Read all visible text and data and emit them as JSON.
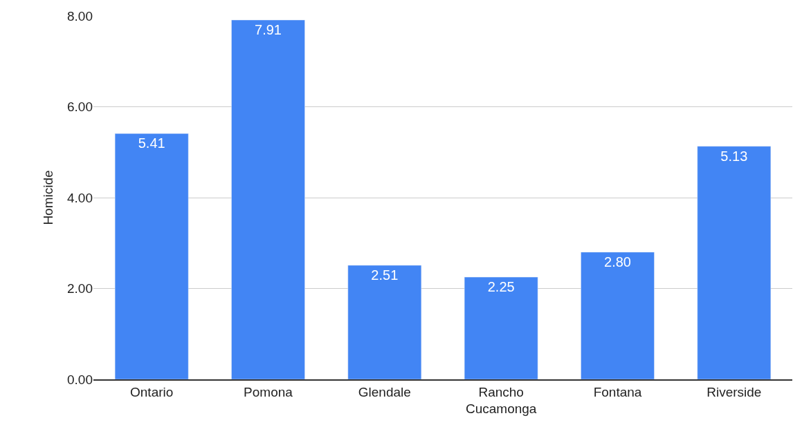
{
  "chart_data": {
    "type": "bar",
    "ylabel": "Homicide",
    "categories": [
      "Ontario",
      "Pomona",
      "Glendale",
      "Rancho Cucamonga",
      "Fontana",
      "Riverside"
    ],
    "values": [
      5.41,
      7.91,
      2.51,
      2.25,
      2.8,
      5.13
    ],
    "value_labels": [
      "5.41",
      "7.91",
      "2.51",
      "2.25",
      "2.80",
      "5.13"
    ],
    "color": "#4285f4",
    "ylim": [
      0,
      8
    ],
    "yticks": [
      {
        "value": 0,
        "label": "0.00"
      },
      {
        "value": 2,
        "label": "2.00"
      },
      {
        "value": 4,
        "label": "4.00"
      },
      {
        "value": 6,
        "label": "6.00"
      },
      {
        "value": 8,
        "label": "8.00"
      }
    ],
    "grid": "y"
  }
}
